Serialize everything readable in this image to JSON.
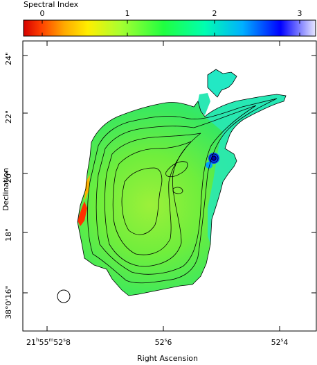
{
  "colorbar": {
    "title": "Spectral Index",
    "ticks": [
      "0",
      "1",
      "2",
      "3"
    ],
    "tick_values": [
      0,
      1,
      2,
      3
    ],
    "range": [
      -0.2,
      3.2
    ],
    "colors": [
      "#d40000",
      "#ff6a00",
      "#ffd200",
      "#c8ff30",
      "#30ff40",
      "#00ffb0",
      "#00a0ff",
      "#0000ff",
      "#d0d0ff"
    ]
  },
  "axes": {
    "xlabel": "Right Ascension",
    "ylabel": "Declination",
    "xticks": [
      {
        "main": "21",
        "h": "h",
        "m1": "55",
        "m": "m",
        "s1": "52",
        "s": "s",
        "frac": "8"
      },
      {
        "main": "52",
        "s": "s",
        "frac": "6"
      },
      {
        "main": "52",
        "s": "s",
        "frac": "4"
      }
    ],
    "yticks": [
      {
        "label": "24\""
      },
      {
        "label": "22\""
      },
      {
        "label": "20\""
      },
      {
        "label": "18\""
      },
      {
        "label": "38°0'16\""
      }
    ]
  },
  "beam": {
    "label": "beam"
  },
  "image": {
    "description_colors": {
      "frame": "#000000",
      "background": "#ffffff",
      "contour": "#000000"
    }
  }
}
